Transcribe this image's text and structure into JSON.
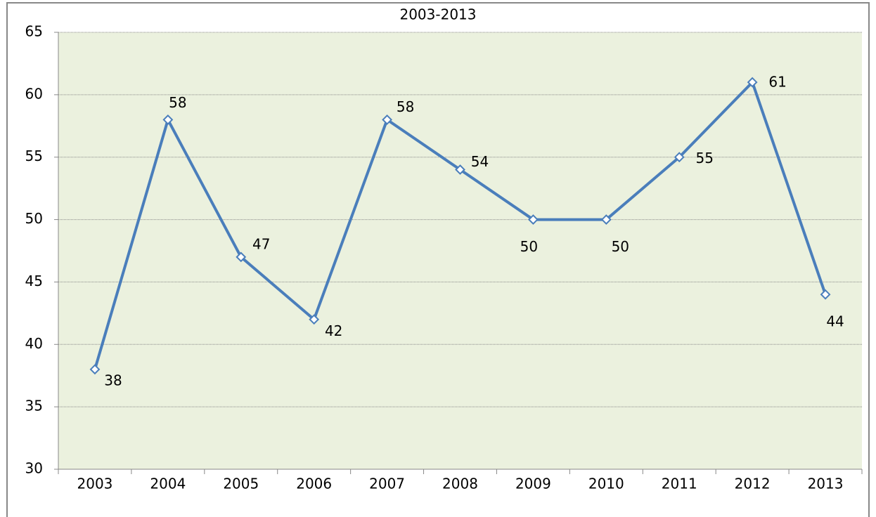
{
  "chart_data": {
    "type": "line",
    "title": "2003-2013",
    "categories": [
      "2003",
      "2004",
      "2005",
      "2006",
      "2007",
      "2008",
      "2009",
      "2010",
      "2011",
      "2012",
      "2013"
    ],
    "series": [
      {
        "color": "#4a7ebb",
        "values": [
          38,
          58,
          47,
          42,
          58,
          54,
          50,
          50,
          55,
          61,
          44
        ]
      }
    ],
    "ylim": [
      30,
      65
    ],
    "yticks": [
      30,
      35,
      40,
      45,
      50,
      55,
      60,
      65
    ],
    "grid": true,
    "data_labels": true,
    "plot_background": "#ebf1de"
  }
}
